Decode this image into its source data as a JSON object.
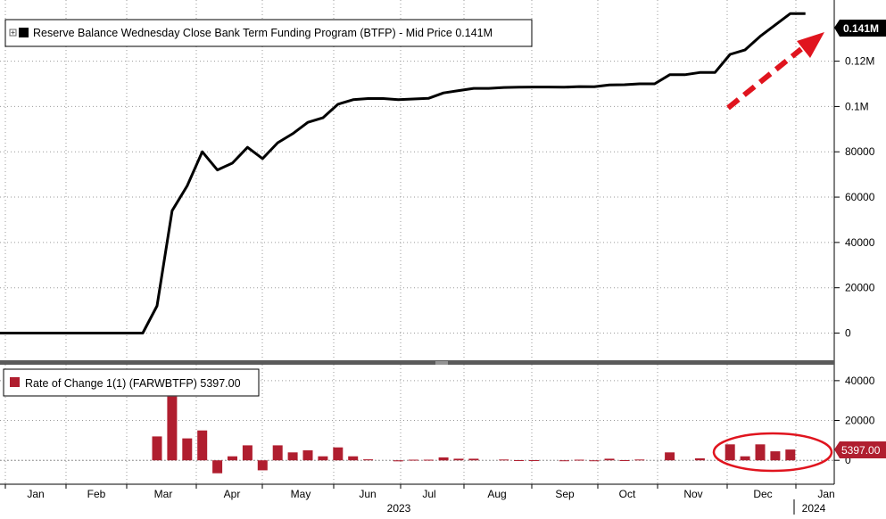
{
  "upper_panel": {
    "legend_text": "Reserve Balance Wednesday Close Bank Term Funding Program (BTFP) - Mid Price 0.141M",
    "last_value_label": "0.141M",
    "y_ticks": [
      "0",
      "20000",
      "40000",
      "60000",
      "80000",
      "0.1M",
      "0.12M"
    ]
  },
  "lower_panel": {
    "legend_text": "Rate of Change 1(1) (FARWBTFP) 5397.00",
    "last_value_label": "5397.00",
    "y_ticks": [
      "0",
      "20000",
      "40000"
    ]
  },
  "x_axis": {
    "month_labels": [
      "Jan",
      "Feb",
      "Mar",
      "Apr",
      "May",
      "Jun",
      "Jul",
      "Aug",
      "Sep",
      "Oct",
      "Nov",
      "Dec",
      "Jan"
    ],
    "year_labels": [
      "2023",
      "2024"
    ]
  },
  "colors": {
    "line": "#000000",
    "bars": "#b01e2f",
    "annotation": "#e0141e",
    "grid": "#9a9a9a",
    "value_tag_dark": "#000000",
    "value_tag_red": "#b01e2f"
  },
  "chart_data": [
    {
      "type": "line",
      "title": "Reserve Balance Wednesday Close Bank Term Funding Program (BTFP) - Mid Price",
      "last_value": 141000,
      "ylim": [
        -12000,
        147000
      ],
      "y_tick_values": [
        0,
        20000,
        40000,
        60000,
        80000,
        100000,
        120000
      ],
      "grid": true,
      "legend_position": "top-left",
      "x": [
        0,
        1,
        2,
        3,
        4,
        5,
        6,
        7,
        8,
        9,
        10,
        11,
        12,
        13,
        14,
        15,
        16,
        17,
        18,
        19,
        20,
        21,
        22,
        23,
        24,
        25,
        26,
        27,
        28,
        29,
        30,
        31,
        32,
        33,
        34,
        35,
        36,
        37,
        38,
        39,
        40,
        41,
        42,
        43,
        44,
        45,
        46,
        47,
        48,
        49,
        50,
        51,
        52,
        53,
        54
      ],
      "values": [
        0,
        0,
        0,
        0,
        0,
        0,
        0,
        0,
        0,
        0,
        0,
        12000,
        54000,
        65000,
        80000,
        72000,
        75000,
        82000,
        77000,
        84000,
        88000,
        93000,
        95000,
        101000,
        103000,
        103500,
        103500,
        103000,
        103300,
        103600,
        106000,
        107000,
        108000,
        108000,
        108400,
        108500,
        108600,
        108600,
        108500,
        108800,
        108700,
        109500,
        109600,
        110000,
        110000,
        114000,
        114000,
        115000,
        115000,
        123000,
        125000,
        131000,
        136000,
        141000,
        141000
      ]
    },
    {
      "type": "bar",
      "title": "Rate of Change 1(1) (FARWBTFP)",
      "last_value": 5397,
      "ylim": [
        -12000,
        48000
      ],
      "y_tick_values": [
        0,
        20000,
        40000
      ],
      "grid": true,
      "legend_position": "top-left",
      "x": [
        0,
        1,
        2,
        3,
        4,
        5,
        6,
        7,
        8,
        9,
        10,
        11,
        12,
        13,
        14,
        15,
        16,
        17,
        18,
        19,
        20,
        21,
        22,
        23,
        24,
        25,
        26,
        27,
        28,
        29,
        30,
        31,
        32,
        33,
        34,
        35,
        36,
        37,
        38,
        39,
        40,
        41,
        42,
        43,
        44,
        45,
        46,
        47,
        48,
        49,
        50,
        51,
        52,
        53
      ],
      "values": [
        0,
        0,
        0,
        0,
        0,
        0,
        0,
        0,
        0,
        0,
        0,
        12000,
        32000,
        11000,
        15000,
        -6500,
        2000,
        7500,
        -5000,
        7500,
        4000,
        5000,
        2000,
        6500,
        2000,
        500,
        0,
        -500,
        300,
        300,
        1500,
        800,
        800,
        0,
        400,
        100,
        100,
        0,
        -100,
        300,
        -100,
        800,
        100,
        400,
        0,
        4000,
        0,
        1000,
        0,
        8000,
        2000,
        8000,
        4500,
        5397
      ]
    }
  ]
}
